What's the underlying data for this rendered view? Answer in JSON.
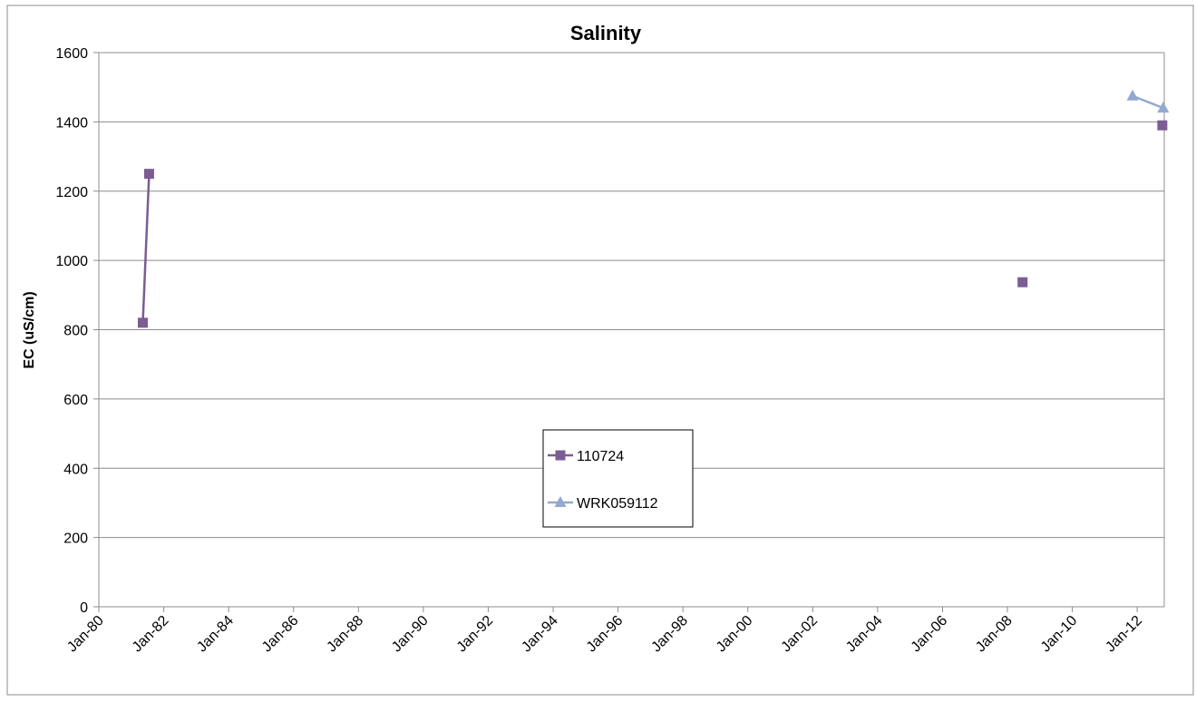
{
  "chart_data": {
    "type": "line",
    "title": "Salinity",
    "xlabel": "",
    "ylabel": "EC (uS/cm)",
    "x_axis_kind": "date",
    "xlim": [
      "1980-01-01",
      "2012-11-01"
    ],
    "ylim": [
      0,
      1600
    ],
    "y_ticks": [
      0,
      200,
      400,
      600,
      800,
      1000,
      1200,
      1400,
      1600
    ],
    "x_ticks": [
      {
        "date": "1980-01-01",
        "label": "Jan-80"
      },
      {
        "date": "1982-01-01",
        "label": "Jan-82"
      },
      {
        "date": "1984-01-01",
        "label": "Jan-84"
      },
      {
        "date": "1986-01-01",
        "label": "Jan-86"
      },
      {
        "date": "1988-01-01",
        "label": "Jan-88"
      },
      {
        "date": "1990-01-01",
        "label": "Jan-90"
      },
      {
        "date": "1992-01-01",
        "label": "Jan-92"
      },
      {
        "date": "1994-01-01",
        "label": "Jan-94"
      },
      {
        "date": "1996-01-01",
        "label": "Jan-96"
      },
      {
        "date": "1998-01-01",
        "label": "Jan-98"
      },
      {
        "date": "2000-01-01",
        "label": "Jan-00"
      },
      {
        "date": "2002-01-01",
        "label": "Jan-02"
      },
      {
        "date": "2004-01-01",
        "label": "Jan-04"
      },
      {
        "date": "2006-01-01",
        "label": "Jan-06"
      },
      {
        "date": "2008-01-01",
        "label": "Jan-08"
      },
      {
        "date": "2010-01-01",
        "label": "Jan-10"
      },
      {
        "date": "2012-01-01",
        "label": "Jan-12"
      }
    ],
    "grid": {
      "horizontal": true,
      "vertical": false
    },
    "legend_position": "center",
    "series": [
      {
        "name": "110724",
        "color": "#7b5c94",
        "marker": "square",
        "segments": [
          [
            {
              "x": "1981-05-10",
              "y": 820
            },
            {
              "x": "1981-07-20",
              "y": 1250
            }
          ],
          [
            {
              "x": "2008-06-20",
              "y": 937
            }
          ],
          [
            {
              "x": "2012-10-10",
              "y": 1390
            }
          ]
        ]
      },
      {
        "name": "WRK059112",
        "color": "#93a9d0",
        "marker": "triangle",
        "segments": [
          [
            {
              "x": "2011-11-10",
              "y": 1475
            },
            {
              "x": "2012-10-20",
              "y": 1440
            }
          ]
        ]
      }
    ]
  }
}
